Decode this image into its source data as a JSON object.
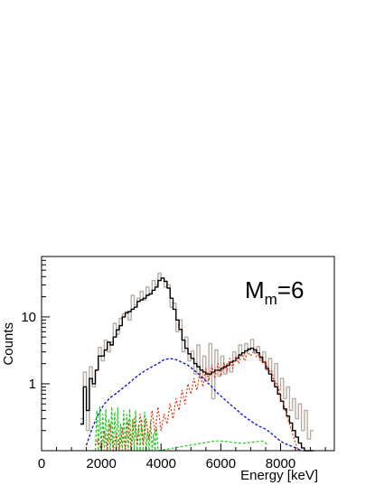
{
  "chart_data": {
    "type": "line",
    "annotation": "M",
    "annotation_sub": "m",
    "annotation_tail": "=6",
    "xlabel": "Energy [keV]",
    "ylabel": "Counts",
    "xlim": [
      0,
      9800
    ],
    "ylim": [
      0.1,
      80
    ],
    "yscale": "log",
    "grid": false,
    "x_ticks": [
      0,
      2000,
      4000,
      6000,
      8000
    ],
    "x_tick_labels": [
      "0",
      "2000",
      "4000",
      "6000",
      "8000"
    ],
    "y_ticks": [
      1,
      10
    ],
    "y_tick_labels": [
      "1",
      "10"
    ],
    "series": [
      {
        "color": "#b8aca4",
        "style": "step",
        "x": [
          1300,
          1400,
          1500,
          1600,
          1700,
          1800,
          1900,
          2000,
          2100,
          2200,
          2300,
          2400,
          2500,
          2600,
          2700,
          2800,
          2900,
          3000,
          3100,
          3200,
          3300,
          3400,
          3500,
          3600,
          3700,
          3800,
          3900,
          4000,
          4100,
          4200,
          4300,
          4400,
          4500,
          4600,
          4700,
          4800,
          4900,
          5000,
          5100,
          5200,
          5300,
          5400,
          5500,
          5600,
          5700,
          5800,
          5900,
          6000,
          6100,
          6200,
          6300,
          6400,
          6500,
          6600,
          6700,
          6800,
          6900,
          7000,
          7100,
          7200,
          7300,
          7400,
          7500,
          7600,
          7700,
          7800,
          7900,
          8000,
          8100,
          8200,
          8300,
          8400,
          8500,
          8600,
          8700,
          8800,
          8900,
          9000
        ],
        "values": [
          0.3,
          1.5,
          0.2,
          1.8,
          0.9,
          1.6,
          3.5,
          2.2,
          4.5,
          3.0,
          4.2,
          8.0,
          5.5,
          9.5,
          11,
          12,
          9,
          21,
          15,
          19,
          24,
          18,
          28,
          22,
          35,
          30,
          45,
          38,
          28,
          30,
          14,
          16,
          6,
          9,
          3,
          5,
          2.2,
          3.1,
          1.4,
          3.8,
          1.2,
          2.6,
          1.1,
          4.0,
          0.6,
          3.2,
          1.3,
          2.6,
          1.4,
          2.0,
          1.5,
          3.0,
          2.5,
          3.8,
          2.6,
          4.0,
          3.2,
          4.6,
          3.0,
          3.6,
          2.2,
          3.0,
          1.6,
          2.4,
          1.1,
          2.0,
          0.8,
          1.2,
          0.6,
          0.9,
          0.4,
          0.6,
          0.3,
          0.5,
          0.2,
          0.4,
          0.15,
          0.2
        ]
      },
      {
        "color": "#000000",
        "style": "step",
        "x": [
          1300,
          1400,
          1500,
          1600,
          1700,
          1800,
          1900,
          2000,
          2100,
          2200,
          2300,
          2400,
          2500,
          2600,
          2700,
          2800,
          2900,
          3000,
          3100,
          3200,
          3300,
          3400,
          3500,
          3600,
          3700,
          3800,
          3900,
          4000,
          4100,
          4200,
          4300,
          4400,
          4500,
          4600,
          4700,
          4800,
          4900,
          5000,
          5100,
          5200,
          5300,
          5400,
          5500,
          5600,
          5700,
          5800,
          5900,
          6000,
          6100,
          6200,
          6300,
          6400,
          6500,
          6600,
          6700,
          6800,
          6900,
          7000,
          7100,
          7200,
          7300,
          7400,
          7500,
          7600,
          7700,
          7800,
          7900,
          8000,
          8100,
          8200,
          8300,
          8400,
          8500,
          8600,
          8700,
          8800,
          8900,
          9000
        ],
        "values": [
          0.25,
          0.9,
          0.4,
          1.2,
          1.0,
          1.6,
          2.6,
          2.6,
          3.2,
          4.2,
          3.8,
          5.0,
          6.4,
          7.4,
          10,
          11.5,
          12,
          13,
          14,
          17,
          18,
          19,
          21,
          22,
          25,
          28,
          35,
          38,
          34,
          27,
          19,
          13,
          9,
          6.5,
          4.5,
          3.4,
          2.8,
          2.4,
          2.0,
          1.8,
          1.6,
          1.5,
          1.4,
          1.4,
          1.5,
          1.6,
          1.6,
          1.7,
          1.8,
          1.9,
          2.1,
          2.2,
          2.4,
          2.7,
          2.9,
          3.1,
          3.3,
          3.4,
          3.2,
          2.9,
          2.5,
          2.1,
          1.7,
          1.4,
          1.1,
          0.9,
          0.7,
          0.55,
          0.42,
          0.33,
          0.26,
          0.2,
          0.16,
          0.13,
          0.11,
          0.1,
          0.1,
          0.1
        ]
      },
      {
        "color": "#1a1ad4",
        "style": "dashed",
        "x": [
          1500,
          1700,
          1900,
          2100,
          2300,
          2500,
          2700,
          2900,
          3100,
          3300,
          3500,
          3700,
          3900,
          4100,
          4300,
          4500,
          4700,
          4900,
          5100,
          5300,
          5500,
          5700,
          5900,
          6100,
          6300,
          6500,
          6700,
          6900,
          7100,
          7300,
          7500,
          7700,
          7900,
          8100,
          8300,
          8500,
          8700
        ],
        "values": [
          0.12,
          0.22,
          0.35,
          0.5,
          0.62,
          0.72,
          0.85,
          1.0,
          1.2,
          1.4,
          1.6,
          1.8,
          2.0,
          2.3,
          2.4,
          2.3,
          2.1,
          1.9,
          1.6,
          1.35,
          1.1,
          0.9,
          0.72,
          0.6,
          0.5,
          0.42,
          0.35,
          0.3,
          0.26,
          0.23,
          0.21,
          0.18,
          0.15,
          0.13,
          0.12,
          0.11,
          0.1
        ]
      },
      {
        "color": "#22cc22",
        "style": "dashed-spikes",
        "x": [
          1800,
          1850,
          1900,
          1950,
          2000,
          2050,
          2100,
          2150,
          2200,
          2250,
          2300,
          2350,
          2400,
          2450,
          2500,
          2550,
          2600,
          2650,
          2700,
          2750,
          2800,
          2850,
          2900,
          2950,
          3000,
          3050,
          3100,
          3150,
          3200,
          3250,
          3300,
          3350,
          3400,
          3450,
          3500,
          3550,
          3600,
          3650,
          3700,
          3750,
          3800,
          3850,
          3900,
          5800,
          6000,
          6600,
          6800,
          7400,
          7600
        ],
        "values": [
          0.1,
          0.4,
          0.1,
          0.45,
          0.1,
          0.35,
          0.1,
          0.42,
          0.1,
          0.3,
          0.1,
          0.45,
          0.1,
          0.38,
          0.1,
          0.44,
          0.1,
          0.25,
          0.1,
          0.4,
          0.1,
          0.35,
          0.1,
          0.42,
          0.1,
          0.3,
          0.1,
          0.4,
          0.1,
          0.25,
          0.1,
          0.3,
          0.1,
          0.38,
          0.1,
          0.2,
          0.1,
          0.28,
          0.1,
          0.18,
          0.1,
          0.22,
          0.1,
          0.14,
          0.14,
          0.13,
          0.13,
          0.14,
          0.12
        ]
      },
      {
        "color": "#ee3311",
        "style": "dotted-spikes",
        "x": [
          1800,
          1900,
          2000,
          2100,
          2200,
          2300,
          2400,
          2500,
          2600,
          2700,
          2800,
          2900,
          3000,
          3100,
          3200,
          3300,
          3400,
          3500,
          3600,
          3700,
          3800,
          3900,
          4000,
          4100,
          4200,
          4300,
          4400,
          4500,
          4600,
          4700,
          4800,
          4900,
          5000,
          5100,
          5200,
          5300,
          5400,
          5500,
          5600,
          5700,
          5800,
          5900,
          6000,
          6100,
          6200,
          6300,
          6400,
          6500,
          6600,
          6700,
          6800,
          6900,
          7000,
          7100,
          7200,
          7300,
          7400,
          7500,
          7600,
          7700,
          7800,
          7900,
          8000,
          8100,
          8200,
          8300,
          8400,
          8500,
          8600
        ],
        "values": [
          0.12,
          0.15,
          0.1,
          0.2,
          0.1,
          0.25,
          0.1,
          0.18,
          0.1,
          0.22,
          0.1,
          0.28,
          0.1,
          0.3,
          0.12,
          0.35,
          0.12,
          0.3,
          0.15,
          0.4,
          0.18,
          0.45,
          0.2,
          0.35,
          0.25,
          0.5,
          0.3,
          0.6,
          0.4,
          0.8,
          0.5,
          1.0,
          0.7,
          1.2,
          0.8,
          1.5,
          0.9,
          1.7,
          1.1,
          1.9,
          1.2,
          2.0,
          1.3,
          2.1,
          1.5,
          2.4,
          1.7,
          2.6,
          2.0,
          2.8,
          2.2,
          3.0,
          2.6,
          3.1,
          2.5,
          2.8,
          2.0,
          2.2,
          1.5,
          1.6,
          1.0,
          1.0,
          0.6,
          0.5,
          0.35,
          0.25,
          0.18,
          0.13,
          0.1
        ]
      }
    ]
  }
}
